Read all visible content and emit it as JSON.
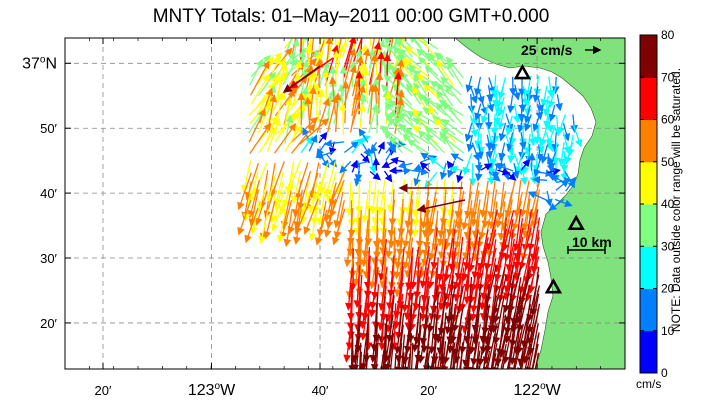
{
  "title": "MNTY Totals: 01–May–2011 00:00 GMT+0.000",
  "map": {
    "lat_labels": [
      {
        "value": 37.0,
        "deg": "37",
        "suffix": "N",
        "min": ""
      },
      {
        "value": 36.8333,
        "deg": "",
        "suffix": "",
        "min": "50′"
      },
      {
        "value": 36.6667,
        "deg": "",
        "suffix": "",
        "min": "40′"
      },
      {
        "value": 36.5,
        "deg": "",
        "suffix": "",
        "min": "30′"
      },
      {
        "value": 36.3333,
        "deg": "",
        "suffix": "",
        "min": "20′"
      }
    ],
    "lon_labels": [
      {
        "value": -123.3333,
        "deg": "",
        "suffix": "",
        "min": "20′"
      },
      {
        "value": -123.0,
        "deg": "123",
        "suffix": "W",
        "min": ""
      },
      {
        "value": -122.6667,
        "deg": "",
        "suffix": "",
        "min": "40′"
      },
      {
        "value": -122.3333,
        "deg": "",
        "suffix": "",
        "min": "20′"
      },
      {
        "value": -122.0,
        "deg": "122",
        "suffix": "W",
        "min": ""
      }
    ],
    "lon_range": [
      -123.45,
      -121.73
    ],
    "lat_range": [
      36.215,
      37.065
    ],
    "land_color": "#80e27c",
    "grid": "dashed",
    "reference_vector": {
      "label": "25 cm/s",
      "speed_cm_s": 25
    },
    "scale_bar": {
      "label": "10 km",
      "km": 10
    },
    "stations": [
      {
        "lon": -122.045,
        "lat": 36.975
      },
      {
        "lon": -121.88,
        "lat": 36.588
      },
      {
        "lon": -121.95,
        "lat": 36.425
      }
    ]
  },
  "colorbar": {
    "ticks": [
      "0",
      "10",
      "20",
      "30",
      "40",
      "50",
      "60",
      "70",
      "80"
    ],
    "colors": [
      "#0000ff",
      "#007fff",
      "#00ffff",
      "#7fff7f",
      "#ffff00",
      "#ff7f00",
      "#ff0000",
      "#7f0000"
    ],
    "unit": "cm/s",
    "note": "NOTE: Data outside color range will be saturated.",
    "range": [
      0,
      80
    ]
  }
}
